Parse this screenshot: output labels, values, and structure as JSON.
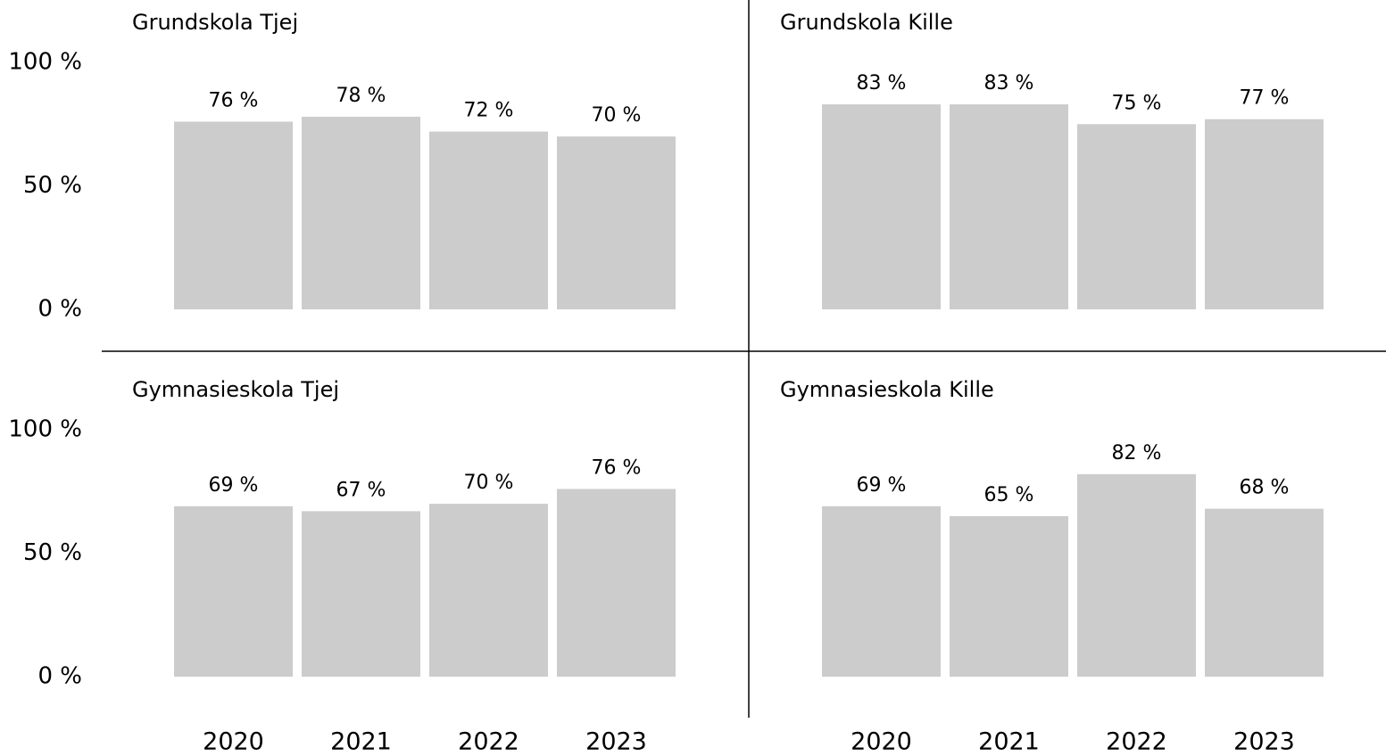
{
  "chart_data": [
    {
      "type": "bar",
      "title": "Grundskola Tjej",
      "values": [
        76,
        78,
        72,
        70
      ],
      "value_labels": [
        "76 %",
        "78 %",
        "72 %",
        "70 %"
      ],
      "color": "#cccccc",
      "ylim": [
        0,
        100
      ],
      "yticks": [
        {
          "value": 0,
          "label": "0 %"
        },
        {
          "value": 50,
          "label": "50 %"
        },
        {
          "value": 100,
          "label": "100 %"
        }
      ]
    },
    {
      "type": "bar",
      "title": "Grundskola Kille",
      "values": [
        83,
        83,
        75,
        77
      ],
      "value_labels": [
        "83 %",
        "83 %",
        "75 %",
        "77 %"
      ],
      "color": "#cccccc",
      "ylim": [
        0,
        100
      ]
    },
    {
      "type": "bar",
      "title": "Gymnasieskola Tjej",
      "categories": [
        "2020",
        "2021",
        "2022",
        "2023"
      ],
      "values": [
        69,
        67,
        70,
        76
      ],
      "value_labels": [
        "69 %",
        "67 %",
        "70 %",
        "76 %"
      ],
      "color": "#cccccc",
      "ylim": [
        0,
        100
      ],
      "yticks": [
        {
          "value": 0,
          "label": "0 %"
        },
        {
          "value": 50,
          "label": "50 %"
        },
        {
          "value": 100,
          "label": "100 %"
        }
      ]
    },
    {
      "type": "bar",
      "title": "Gymnasieskola Kille",
      "categories": [
        "2020",
        "2021",
        "2022",
        "2023"
      ],
      "values": [
        69,
        65,
        82,
        68
      ],
      "value_labels": [
        "69 %",
        "65 %",
        "82 %",
        "68 %"
      ],
      "color": "#cccccc",
      "ylim": [
        0,
        100
      ]
    }
  ]
}
